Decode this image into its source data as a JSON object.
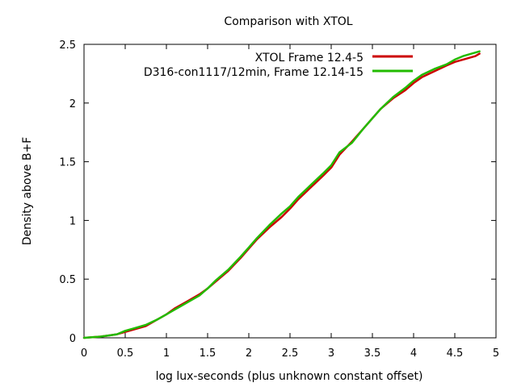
{
  "chart_data": {
    "type": "line",
    "title": "Comparison with XTOL",
    "xlabel": "log lux-seconds (plus unknown constant offset)",
    "ylabel": "Density above B+F",
    "xlim": [
      0,
      5
    ],
    "ylim": [
      0,
      2.5
    ],
    "xticks": [
      "0",
      "0.5",
      "1",
      "1.5",
      "2",
      "2.5",
      "3",
      "3.5",
      "4",
      "4.5",
      "5"
    ],
    "yticks": [
      "0",
      "0.5",
      "1",
      "1.5",
      "2",
      "2.5"
    ],
    "grid": false,
    "legend_position": "top-right",
    "series": [
      {
        "name": "XTOL Frame 12.4-5",
        "color": "#cc0000",
        "x": [
          0,
          0.2,
          0.3,
          0.4,
          0.5,
          0.6,
          0.75,
          0.9,
          1.0,
          1.1,
          1.25,
          1.4,
          1.5,
          1.6,
          1.75,
          1.9,
          2.0,
          2.1,
          2.25,
          2.4,
          2.5,
          2.6,
          2.75,
          2.9,
          3.0,
          3.1,
          3.25,
          3.4,
          3.5,
          3.6,
          3.75,
          3.9,
          4.0,
          4.1,
          4.25,
          4.4,
          4.5,
          4.6,
          4.75,
          4.8
        ],
        "y": [
          0,
          0.01,
          0.02,
          0.03,
          0.05,
          0.07,
          0.1,
          0.16,
          0.2,
          0.25,
          0.31,
          0.37,
          0.42,
          0.48,
          0.57,
          0.68,
          0.76,
          0.84,
          0.94,
          1.03,
          1.1,
          1.18,
          1.28,
          1.38,
          1.45,
          1.56,
          1.67,
          1.79,
          1.87,
          1.95,
          2.04,
          2.11,
          2.17,
          2.22,
          2.27,
          2.32,
          2.35,
          2.37,
          2.4,
          2.42
        ]
      },
      {
        "name": "D316-con1117/12min, Frame 12.14-15",
        "color": "#22bb00",
        "x": [
          0,
          0.2,
          0.3,
          0.4,
          0.5,
          0.6,
          0.75,
          0.9,
          1.0,
          1.1,
          1.25,
          1.4,
          1.5,
          1.6,
          1.75,
          1.9,
          2.0,
          2.1,
          2.25,
          2.4,
          2.5,
          2.6,
          2.75,
          2.9,
          3.0,
          3.1,
          3.25,
          3.4,
          3.5,
          3.6,
          3.75,
          3.9,
          4.0,
          4.1,
          4.25,
          4.4,
          4.5,
          4.6,
          4.75,
          4.8
        ],
        "y": [
          0,
          0.01,
          0.02,
          0.03,
          0.06,
          0.08,
          0.11,
          0.16,
          0.2,
          0.24,
          0.3,
          0.36,
          0.42,
          0.49,
          0.58,
          0.69,
          0.77,
          0.85,
          0.96,
          1.06,
          1.12,
          1.2,
          1.3,
          1.4,
          1.47,
          1.58,
          1.66,
          1.79,
          1.87,
          1.95,
          2.05,
          2.13,
          2.19,
          2.24,
          2.29,
          2.33,
          2.37,
          2.4,
          2.43,
          2.44
        ]
      }
    ]
  }
}
